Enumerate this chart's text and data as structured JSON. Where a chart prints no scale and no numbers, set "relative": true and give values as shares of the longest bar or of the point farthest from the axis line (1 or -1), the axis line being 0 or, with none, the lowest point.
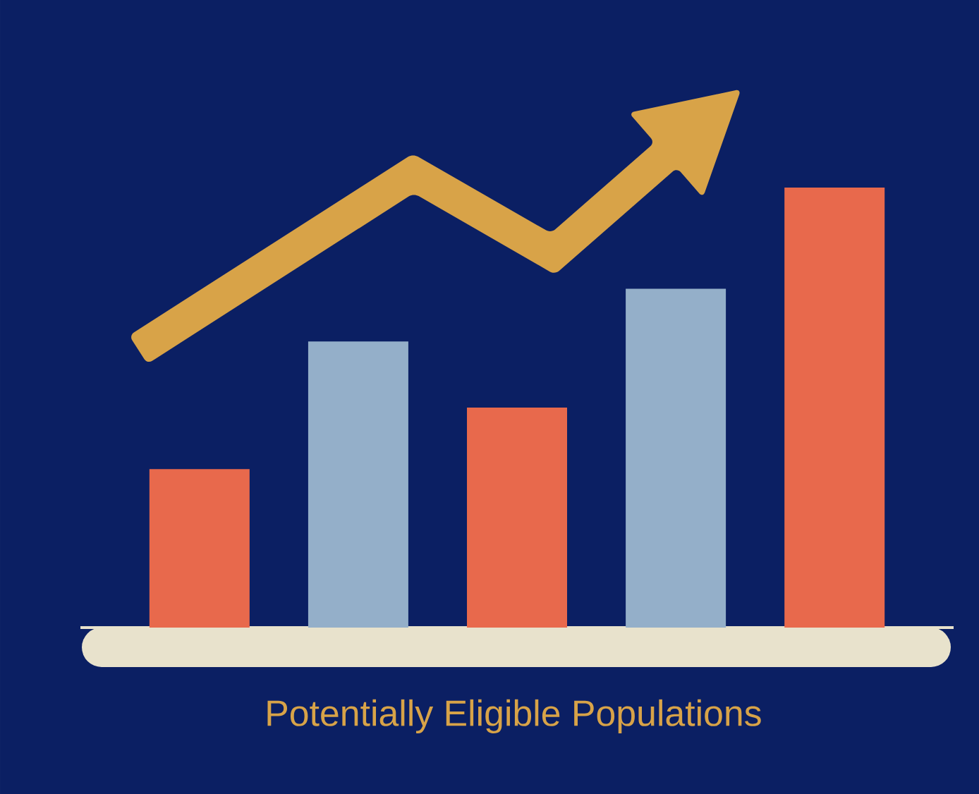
{
  "chart_data": {
    "type": "bar",
    "title": "Potentially Eligible Populations",
    "relative": true,
    "categories": [
      null,
      null,
      null,
      null,
      null
    ],
    "values": [
      0.36,
      0.65,
      0.5,
      0.77,
      1.0
    ],
    "colors": [
      "#e8694c",
      "#94afc9",
      "#e8694c",
      "#94afc9",
      "#e8694c"
    ]
  }
}
